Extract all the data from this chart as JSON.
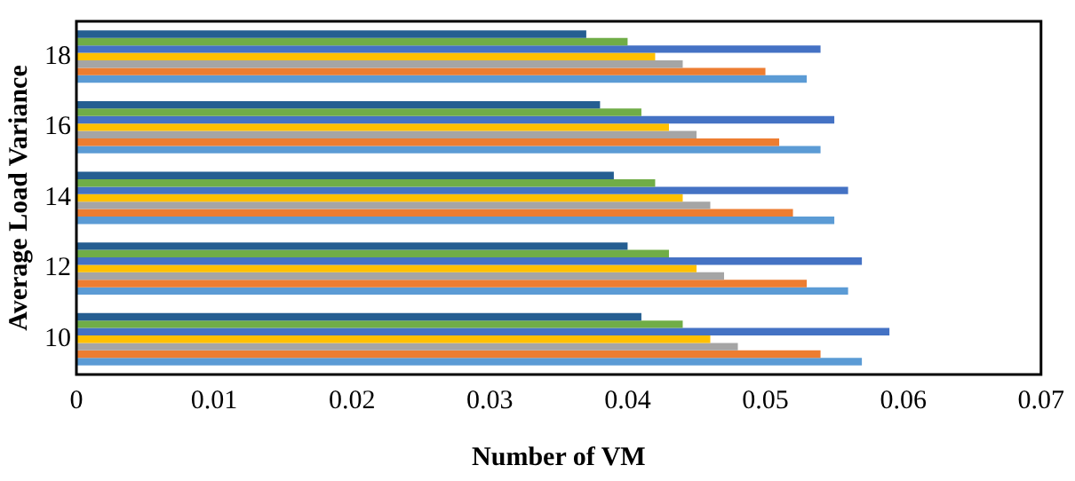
{
  "chart_data": {
    "type": "bar",
    "orientation": "horizontal",
    "xlabel": "Number of VM",
    "ylabel": "Average Load Variance",
    "categories": [
      "18",
      "16",
      "14",
      "12",
      "10"
    ],
    "series": [
      {
        "color": "#5b9bd5",
        "values": [
          0.053,
          0.054,
          0.055,
          0.056,
          0.057
        ]
      },
      {
        "color": "#ed7d31",
        "values": [
          0.05,
          0.051,
          0.052,
          0.053,
          0.054
        ]
      },
      {
        "color": "#a5a5a5",
        "values": [
          0.044,
          0.045,
          0.046,
          0.047,
          0.048
        ]
      },
      {
        "color": "#ffc000",
        "values": [
          0.042,
          0.043,
          0.044,
          0.045,
          0.046
        ]
      },
      {
        "color": "#4472c4",
        "values": [
          0.054,
          0.055,
          0.056,
          0.057,
          0.059
        ]
      },
      {
        "color": "#70ad47",
        "values": [
          0.04,
          0.041,
          0.042,
          0.043,
          0.044
        ]
      },
      {
        "color": "#255e91",
        "values": [
          0.037,
          0.038,
          0.039,
          0.04,
          0.041
        ]
      }
    ],
    "xlim": [
      0,
      0.07
    ],
    "xticks": [
      0,
      0.01,
      0.02,
      0.03,
      0.04,
      0.05,
      0.06,
      0.07
    ],
    "grid": false,
    "legend": false
  }
}
